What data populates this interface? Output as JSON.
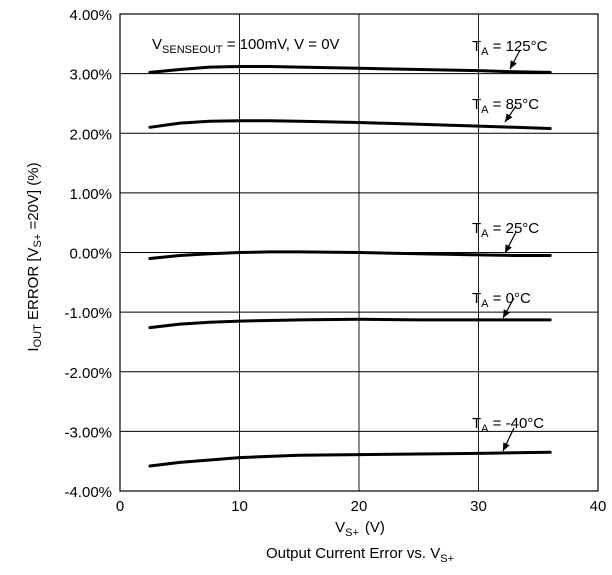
{
  "chart_data": {
    "type": "line",
    "title": "",
    "caption": {
      "main": "Output Current Error vs. V",
      "sub": "S+"
    },
    "xlabel": {
      "main": "V",
      "sub": "S+",
      "unit": "(V)"
    },
    "ylabel": {
      "pre": "I",
      "sub1": "OUT",
      "mid": " ERROR [V",
      "sub2": "S+",
      "post": " =20V] (%)"
    },
    "condition": {
      "pre": "V",
      "sub": "SENSEOUT",
      "post": " = 100mV, V = 0V"
    },
    "xlim": [
      0,
      40
    ],
    "ylim": [
      -4,
      4
    ],
    "xticks": [
      0,
      10,
      20,
      30,
      40
    ],
    "xtick_labels": [
      "0",
      "10",
      "20",
      "30",
      "40"
    ],
    "yticks": [
      4,
      3,
      2,
      1,
      0,
      -1,
      -2,
      -3,
      -4
    ],
    "ytick_labels": [
      "4.00%",
      "3.00%",
      "2.00%",
      "1.00%",
      "0.00%",
      "-1.00%",
      "-2.00%",
      "-3.00%",
      "-4.00%"
    ],
    "grid": true,
    "series": [
      {
        "name": "T_A = 125°C",
        "label_main": "T",
        "label_sub": "A",
        "label_rest": " = 125°C",
        "x": [
          2.5,
          5,
          7.5,
          10,
          12.5,
          15,
          20,
          25,
          30,
          33,
          36
        ],
        "y": [
          3.02,
          3.07,
          3.11,
          3.12,
          3.12,
          3.11,
          3.09,
          3.07,
          3.05,
          3.03,
          3.02
        ]
      },
      {
        "name": "T_A = 85°C",
        "label_main": "T",
        "label_sub": "A",
        "label_rest": " = 85°C",
        "x": [
          2.5,
          5,
          7.5,
          10,
          12.5,
          15,
          20,
          25,
          30,
          33,
          36
        ],
        "y": [
          2.1,
          2.17,
          2.2,
          2.21,
          2.21,
          2.2,
          2.18,
          2.15,
          2.12,
          2.1,
          2.08
        ]
      },
      {
        "name": "T_A = 25°C",
        "label_main": "T",
        "label_sub": "A",
        "label_rest": " = 25°C",
        "x": [
          2.5,
          5,
          7.5,
          10,
          12.5,
          15,
          20,
          25,
          30,
          33,
          36
        ],
        "y": [
          -0.1,
          -0.05,
          -0.02,
          0.0,
          0.01,
          0.01,
          0.0,
          -0.02,
          -0.04,
          -0.05,
          -0.05
        ]
      },
      {
        "name": "T_A = 0°C",
        "label_main": "T",
        "label_sub": "A",
        "label_rest": " = 0°C",
        "x": [
          2.5,
          5,
          7.5,
          10,
          12.5,
          15,
          20,
          25,
          30,
          33,
          36
        ],
        "y": [
          -1.26,
          -1.2,
          -1.17,
          -1.15,
          -1.14,
          -1.13,
          -1.12,
          -1.13,
          -1.13,
          -1.13,
          -1.13
        ]
      },
      {
        "name": "T_A = -40°C",
        "label_main": "T",
        "label_sub": "A",
        "label_rest": " = -40°C",
        "x": [
          2.5,
          5,
          7.5,
          10,
          12.5,
          15,
          20,
          25,
          30,
          33,
          36
        ],
        "y": [
          -3.58,
          -3.52,
          -3.48,
          -3.44,
          -3.42,
          -3.4,
          -3.39,
          -3.38,
          -3.37,
          -3.36,
          -3.35
        ]
      }
    ]
  }
}
